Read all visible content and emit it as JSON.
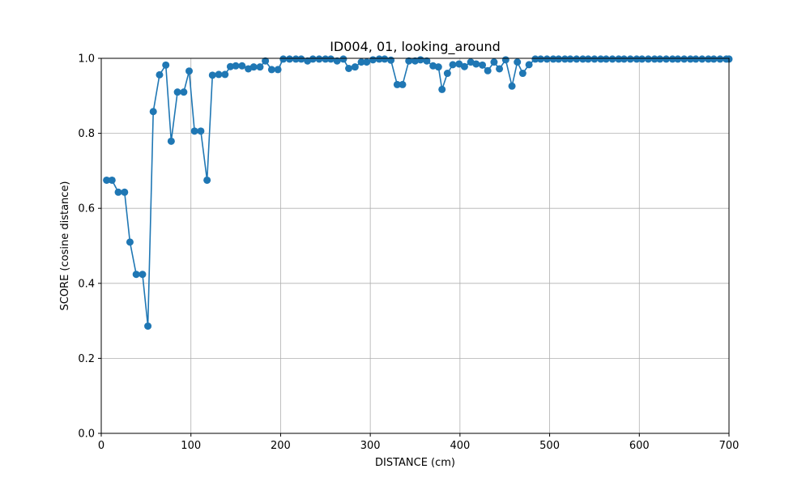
{
  "chart_data": {
    "type": "line",
    "title": "ID004, 01, looking_around",
    "xlabel": "DISTANCE (cm)",
    "ylabel": "SCORE (cosine distance)",
    "xlim": [
      0,
      700
    ],
    "ylim": [
      0,
      1
    ],
    "xticks": [
      0,
      100,
      200,
      300,
      400,
      500,
      600,
      700
    ],
    "yticks": [
      0.0,
      0.2,
      0.4,
      0.6,
      0.8,
      1.0
    ],
    "ytick_labels": [
      "0.0",
      "0.2",
      "0.4",
      "0.6",
      "0.8",
      "1.0"
    ],
    "grid": true,
    "series_color": "#1f77b4",
    "series": [
      {
        "marker": "circle",
        "x": [
          6,
          12,
          19,
          26,
          32,
          39,
          46,
          52,
          58,
          65,
          72,
          78,
          85,
          92,
          98,
          104,
          111,
          118,
          124,
          131,
          138,
          144,
          150,
          157,
          164,
          170,
          177,
          183,
          190,
          197,
          203,
          210,
          217,
          223,
          230,
          236,
          243,
          250,
          256,
          263,
          270,
          276,
          283,
          290,
          296,
          303,
          310,
          316,
          323,
          330,
          336,
          343,
          350,
          356,
          363,
          370,
          376,
          380,
          386,
          392,
          399,
          405,
          412,
          418,
          425,
          431,
          438,
          444,
          451,
          458,
          464,
          470,
          477,
          484,
          490,
          497,
          504,
          510,
          517,
          523,
          530,
          537,
          543,
          550,
          557,
          563,
          570,
          577,
          583,
          590,
          597,
          603,
          610,
          617,
          623,
          630,
          637,
          643,
          650,
          657,
          663,
          670,
          677,
          683,
          690,
          697,
          700
        ],
        "y": [
          0.675,
          0.675,
          0.643,
          0.643,
          0.51,
          0.424,
          0.424,
          0.286,
          0.858,
          0.956,
          0.982,
          0.779,
          0.91,
          0.91,
          0.966,
          0.806,
          0.806,
          0.675,
          0.955,
          0.957,
          0.957,
          0.978,
          0.98,
          0.98,
          0.972,
          0.977,
          0.977,
          0.993,
          0.97,
          0.97,
          0.998,
          0.998,
          0.998,
          0.998,
          0.993,
          0.998,
          0.998,
          0.998,
          0.998,
          0.993,
          0.998,
          0.973,
          0.977,
          0.99,
          0.99,
          0.996,
          0.998,
          0.998,
          0.995,
          0.93,
          0.93,
          0.993,
          0.993,
          0.996,
          0.993,
          0.98,
          0.977,
          0.917,
          0.96,
          0.983,
          0.985,
          0.978,
          0.99,
          0.985,
          0.982,
          0.967,
          0.99,
          0.972,
          0.996,
          0.926,
          0.99,
          0.96,
          0.983,
          0.998,
          0.998,
          0.998,
          0.998,
          0.998,
          0.998,
          0.998,
          0.998,
          0.998,
          0.998,
          0.998,
          0.998,
          0.998,
          0.998,
          0.998,
          0.998,
          0.998,
          0.998,
          0.998,
          0.998,
          0.998,
          0.998,
          0.998,
          0.998,
          0.998,
          0.998,
          0.998,
          0.998,
          0.998,
          0.998,
          0.998,
          0.998,
          0.998,
          0.998
        ]
      }
    ]
  }
}
